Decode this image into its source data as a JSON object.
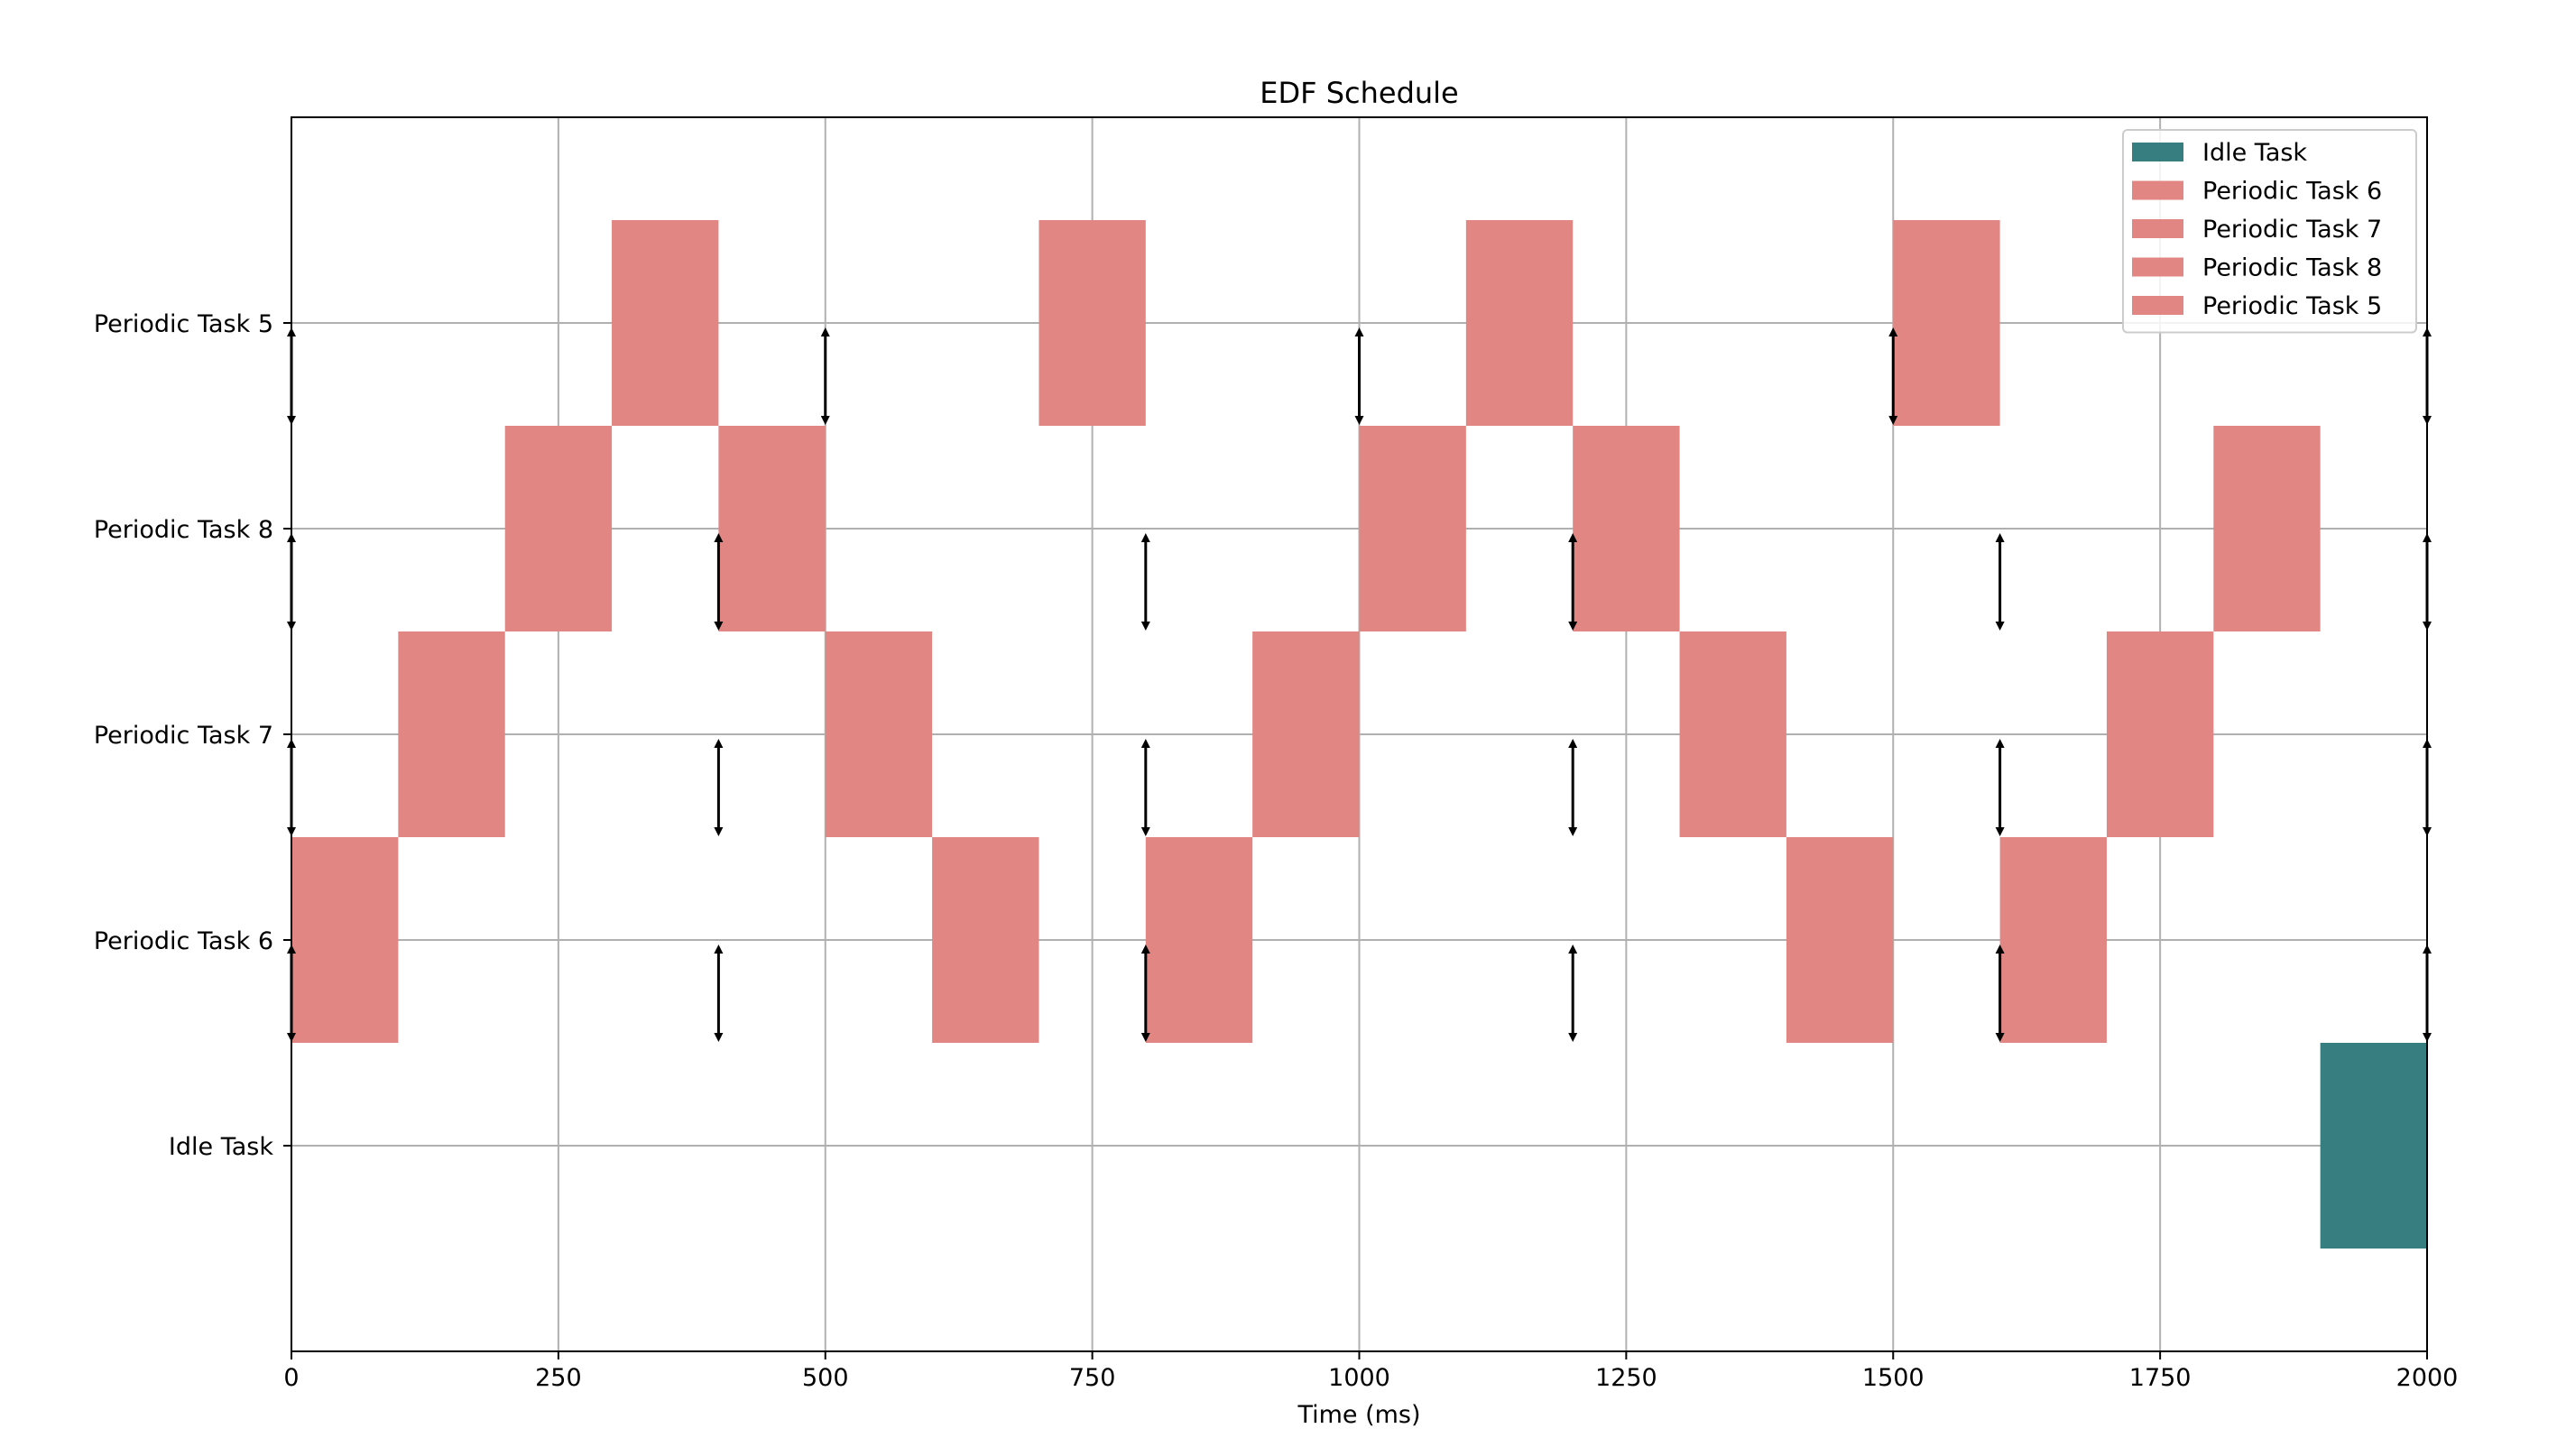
{
  "chart_data": {
    "type": "gantt",
    "title": "EDF Schedule",
    "xlabel": "Time (ms)",
    "ylabel": "",
    "xlim": [
      0,
      2000
    ],
    "x_ticks": [
      0,
      250,
      500,
      750,
      1000,
      1250,
      1500,
      1750,
      2000
    ],
    "grid": true,
    "legend_position": "top-right",
    "rows": [
      "Idle Task",
      "Periodic Task 6",
      "Periodic Task 7",
      "Periodic Task 8",
      "Periodic Task 5"
    ],
    "legend": [
      {
        "name": "Idle Task",
        "color": "#367e7f"
      },
      {
        "name": "Periodic Task 6",
        "color": "#e18682"
      },
      {
        "name": "Periodic Task 7",
        "color": "#e18682"
      },
      {
        "name": "Periodic Task 8",
        "color": "#e18682"
      },
      {
        "name": "Periodic Task 5",
        "color": "#e18682"
      }
    ],
    "segments": [
      {
        "task": "Periodic Task 6",
        "start": 0,
        "end": 100
      },
      {
        "task": "Periodic Task 7",
        "start": 100,
        "end": 200
      },
      {
        "task": "Periodic Task 8",
        "start": 200,
        "end": 300
      },
      {
        "task": "Periodic Task 5",
        "start": 300,
        "end": 400
      },
      {
        "task": "Periodic Task 8",
        "start": 400,
        "end": 500
      },
      {
        "task": "Periodic Task 7",
        "start": 500,
        "end": 600
      },
      {
        "task": "Periodic Task 6",
        "start": 600,
        "end": 700
      },
      {
        "task": "Periodic Task 5",
        "start": 700,
        "end": 800
      },
      {
        "task": "Periodic Task 6",
        "start": 800,
        "end": 900
      },
      {
        "task": "Periodic Task 7",
        "start": 900,
        "end": 1000
      },
      {
        "task": "Periodic Task 8",
        "start": 1000,
        "end": 1100
      },
      {
        "task": "Periodic Task 5",
        "start": 1100,
        "end": 1200
      },
      {
        "task": "Periodic Task 8",
        "start": 1200,
        "end": 1300
      },
      {
        "task": "Periodic Task 7",
        "start": 1300,
        "end": 1400
      },
      {
        "task": "Periodic Task 6",
        "start": 1400,
        "end": 1500
      },
      {
        "task": "Periodic Task 5",
        "start": 1500,
        "end": 1600
      },
      {
        "task": "Periodic Task 6",
        "start": 1600,
        "end": 1700
      },
      {
        "task": "Periodic Task 7",
        "start": 1700,
        "end": 1800
      },
      {
        "task": "Periodic Task 8",
        "start": 1800,
        "end": 1900
      },
      {
        "task": "Idle Task",
        "start": 1900,
        "end": 2000
      }
    ],
    "markers": [
      {
        "task": "Periodic Task 5",
        "times": [
          0,
          500,
          1000,
          1500,
          2000
        ]
      },
      {
        "task": "Periodic Task 8",
        "times": [
          0,
          400,
          800,
          1200,
          1600,
          2000
        ]
      },
      {
        "task": "Periodic Task 7",
        "times": [
          0,
          400,
          800,
          1200,
          1600,
          2000
        ]
      },
      {
        "task": "Periodic Task 6",
        "times": [
          0,
          400,
          800,
          1200,
          1600,
          2000
        ]
      }
    ]
  }
}
